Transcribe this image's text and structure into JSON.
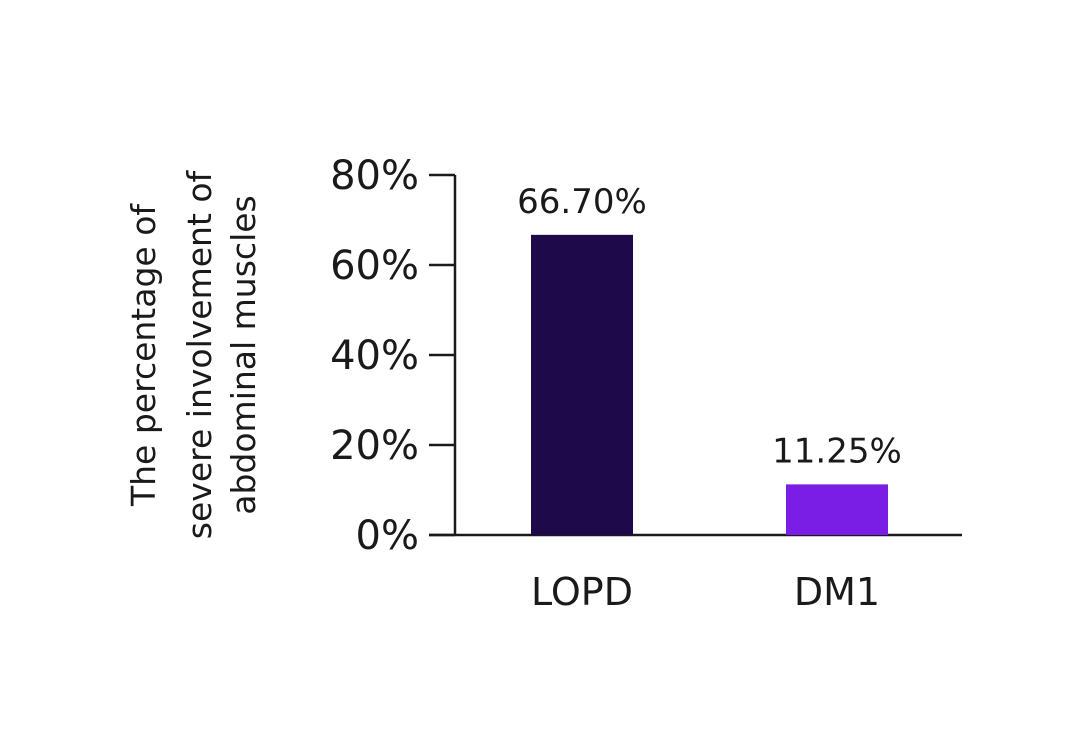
{
  "chart_data": {
    "type": "bar",
    "title": "",
    "xlabel": "",
    "ylabel": "The percentage of severe involvement of abdominal muscles",
    "ylabel_lines": [
      "The percentage of",
      "severe involvement of",
      "abdominal muscles"
    ],
    "categories": [
      "LOPD",
      "DM1"
    ],
    "values": [
      66.7,
      11.25
    ],
    "data_labels": [
      "66.70%",
      "11.25%"
    ],
    "bar_colors": [
      "#1e0a4a",
      "#7a1ee6"
    ],
    "ylim": [
      0,
      80
    ],
    "yticks": [
      0,
      20,
      40,
      60,
      80
    ],
    "ytick_labels": [
      "0%",
      "20%",
      "40%",
      "60%",
      "80%"
    ],
    "grid": false,
    "legend": "none"
  }
}
